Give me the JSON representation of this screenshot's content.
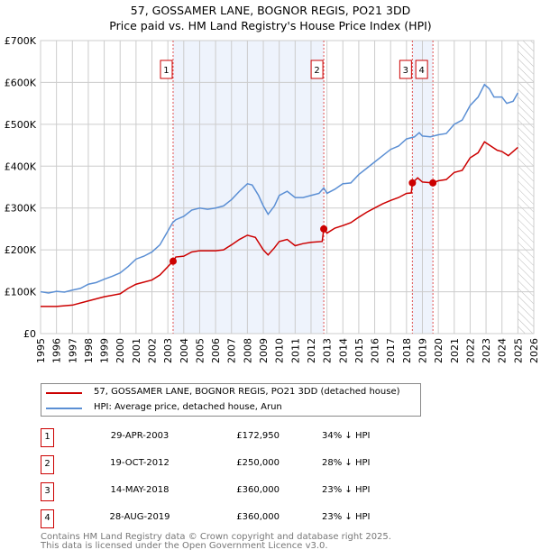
{
  "chart_data": {
    "type": "line",
    "title": "57, GOSSAMER LANE, BOGNOR REGIS, PO21 3DD",
    "subtitle": "Price paid vs. HM Land Registry's House Price Index (HPI)",
    "xlim": [
      1995,
      2026
    ],
    "ylim": [
      0,
      700000
    ],
    "x_ticks": [
      "1995",
      "1996",
      "1997",
      "1998",
      "1999",
      "2000",
      "2001",
      "2002",
      "2003",
      "2004",
      "2005",
      "2006",
      "2007",
      "2008",
      "2009",
      "2010",
      "2011",
      "2012",
      "2013",
      "2014",
      "2015",
      "2016",
      "2017",
      "2018",
      "2019",
      "2020",
      "2021",
      "2022",
      "2023",
      "2024",
      "2025",
      "2026"
    ],
    "y_ticks": [
      {
        "v": 0,
        "label": "£0"
      },
      {
        "v": 100000,
        "label": "£100K"
      },
      {
        "v": 200000,
        "label": "£200K"
      },
      {
        "v": 300000,
        "label": "£300K"
      },
      {
        "v": 400000,
        "label": "£400K"
      },
      {
        "v": 500000,
        "label": "£500K"
      },
      {
        "v": 600000,
        "label": "£600K"
      },
      {
        "v": 700000,
        "label": "£700K"
      }
    ],
    "grid": true,
    "legend_placement": "below",
    "forecast_hatch_from": 2025.0,
    "series": [
      {
        "name": "57, GOSSAMER LANE, BOGNOR REGIS, PO21 3DD (detached house)",
        "color": "#cc0000",
        "x": [
          1995,
          1996,
          1997,
          1998,
          1999,
          2000,
          2000.5,
          2001,
          2002,
          2002.5,
          2003.33,
          2003.5,
          2004,
          2004.5,
          2005,
          2006,
          2006.5,
          2007,
          2007.5,
          2008,
          2008.5,
          2009,
          2009.3,
          2009.7,
          2010,
          2010.5,
          2011,
          2011.5,
          2012,
          2012.7,
          2012.8,
          2013,
          2013.5,
          2014,
          2014.5,
          2015,
          2015.5,
          2016,
          2016.5,
          2017,
          2017.5,
          2018,
          2018.3,
          2018.37,
          2018.7,
          2019,
          2019.66,
          2020,
          2020.5,
          2021,
          2021.5,
          2022,
          2022.5,
          2022.9,
          2023.3,
          2023.7,
          2024,
          2024.4,
          2025
        ],
        "y": [
          65000,
          65000,
          68000,
          78000,
          88000,
          95000,
          108000,
          118000,
          128000,
          140000,
          172950,
          183000,
          185000,
          195000,
          198000,
          198000,
          200000,
          212000,
          225000,
          235000,
          230000,
          200000,
          188000,
          205000,
          220000,
          225000,
          210000,
          215000,
          218000,
          220000,
          250000,
          240000,
          252000,
          258000,
          265000,
          278000,
          290000,
          300000,
          310000,
          318000,
          325000,
          335000,
          336000,
          360000,
          372000,
          362000,
          360000,
          365000,
          368000,
          385000,
          390000,
          420000,
          432000,
          458000,
          448000,
          438000,
          435000,
          425000,
          445000
        ]
      },
      {
        "name": "HPI: Average price, detached house, Arun",
        "color": "#5b8fd4",
        "x": [
          1995,
          1995.5,
          1996,
          1996.5,
          1997,
          1997.5,
          1998,
          1998.5,
          1999,
          1999.5,
          2000,
          2000.5,
          2001,
          2001.5,
          2002,
          2002.5,
          2003,
          2003.3,
          2003.5,
          2004,
          2004.5,
          2005,
          2005.5,
          2006,
          2006.5,
          2007,
          2007.5,
          2008,
          2008.3,
          2008.7,
          2009,
          2009.3,
          2009.7,
          2010,
          2010.5,
          2011,
          2011.5,
          2012,
          2012.5,
          2012.8,
          2013,
          2013.5,
          2014,
          2014.5,
          2015,
          2015.5,
          2016,
          2016.5,
          2017,
          2017.5,
          2018,
          2018.5,
          2018.8,
          2019,
          2019.5,
          2020,
          2020.5,
          2021,
          2021.5,
          2022,
          2022.5,
          2022.9,
          2023.2,
          2023.5,
          2024,
          2024.3,
          2024.7,
          2025
        ],
        "y": [
          100000,
          97000,
          101000,
          99000,
          104000,
          108000,
          118000,
          122000,
          130000,
          137000,
          145000,
          160000,
          178000,
          185000,
          195000,
          212000,
          245000,
          265000,
          272000,
          280000,
          295000,
          300000,
          297000,
          300000,
          305000,
          320000,
          340000,
          358000,
          355000,
          330000,
          305000,
          285000,
          305000,
          330000,
          340000,
          325000,
          325000,
          330000,
          335000,
          348000,
          335000,
          345000,
          358000,
          360000,
          380000,
          395000,
          410000,
          425000,
          440000,
          448000,
          465000,
          470000,
          480000,
          472000,
          470000,
          475000,
          478000,
          500000,
          510000,
          545000,
          565000,
          595000,
          585000,
          565000,
          565000,
          550000,
          555000,
          575000
        ]
      }
    ],
    "sales": [
      {
        "id": "1",
        "x": 2003.33,
        "price": 172950,
        "date": "29-APR-2003",
        "price_label": "£172,950",
        "hpi": "34% ↓ HPI"
      },
      {
        "id": "2",
        "x": 2012.8,
        "price": 250000,
        "date": "19-OCT-2012",
        "price_label": "£250,000",
        "hpi": "28% ↓ HPI"
      },
      {
        "id": "3",
        "x": 2018.37,
        "price": 360000,
        "date": "14-MAY-2018",
        "price_label": "£360,000",
        "hpi": "23% ↓ HPI"
      },
      {
        "id": "4",
        "x": 2019.66,
        "price": 360000,
        "date": "28-AUG-2019",
        "price_label": "£360,000",
        "hpi": "23% ↓ HPI"
      }
    ],
    "shaded_ranges": [
      [
        2003.33,
        2012.8
      ],
      [
        2018.37,
        2019.66
      ]
    ]
  },
  "legend": {
    "red": "57, GOSSAMER LANE, BOGNOR REGIS, PO21 3DD (detached house)",
    "blue": "HPI: Average price, detached house, Arun"
  },
  "footer": {
    "line1": "Contains HM Land Registry data © Crown copyright and database right 2025.",
    "line2": "This data is licensed under the Open Government Licence v3.0."
  }
}
